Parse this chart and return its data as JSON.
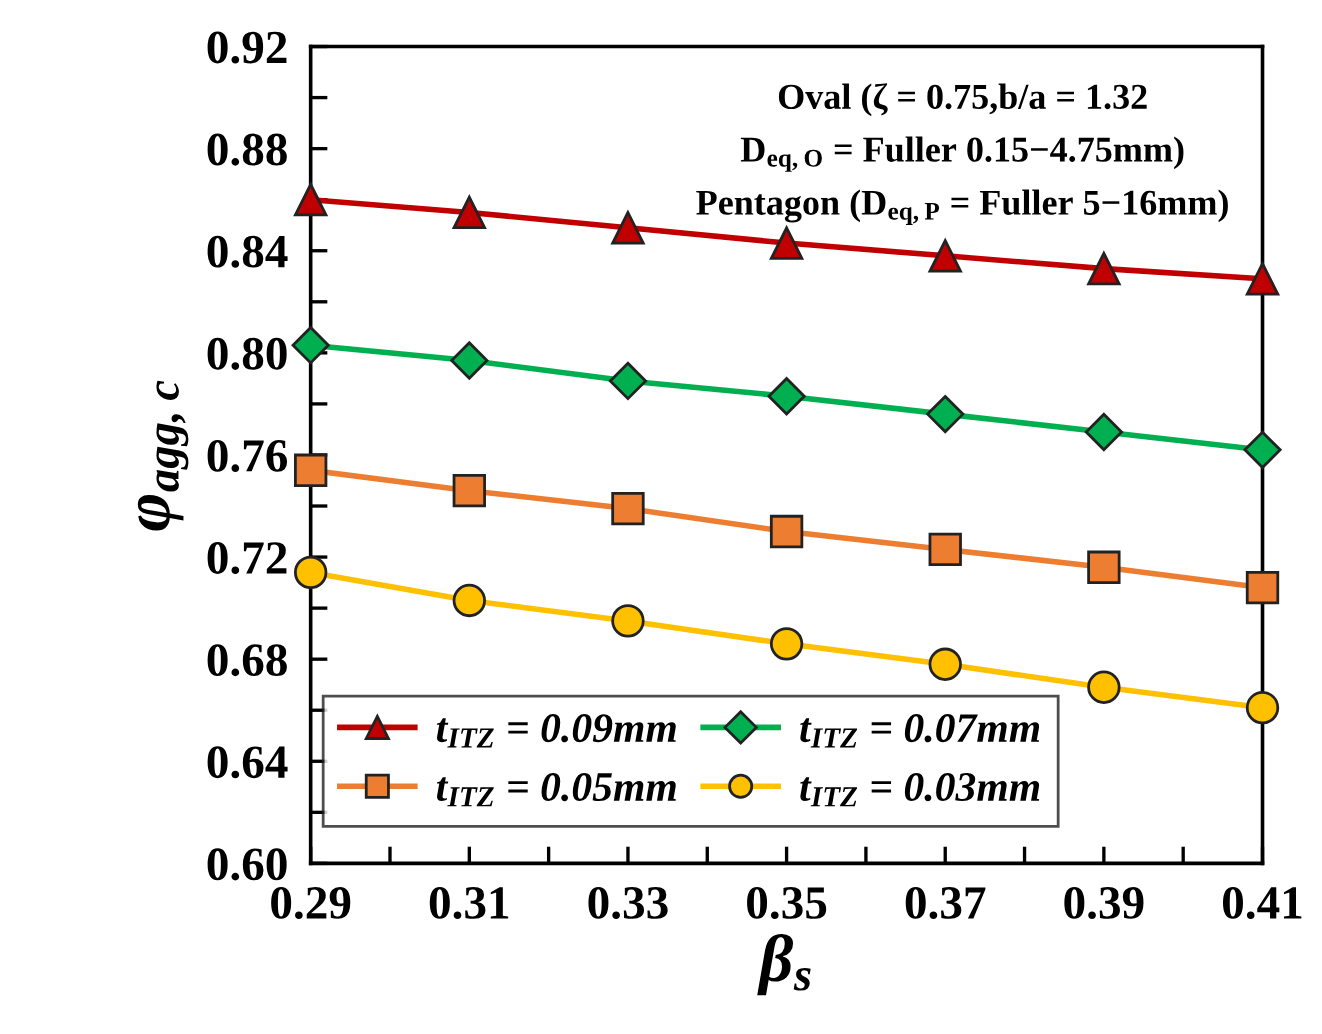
{
  "chart_data": {
    "type": "line",
    "xlabel": "β$_{s}$",
    "ylabel": "φ$_{agg,c}$",
    "x": [
      0.29,
      0.31,
      0.33,
      0.35,
      0.37,
      0.39,
      0.41
    ],
    "series": [
      {
        "name": "t$_{ITZ}$ = 0.09mm",
        "color": "#c00000",
        "marker": "triangle",
        "values": [
          0.86,
          0.855,
          0.849,
          0.843,
          0.838,
          0.833,
          0.829
        ]
      },
      {
        "name": "t$_{ITZ}$ = 0.07mm",
        "color": "#00b050",
        "marker": "diamond",
        "values": [
          0.803,
          0.797,
          0.789,
          0.783,
          0.776,
          0.769,
          0.762
        ]
      },
      {
        "name": "t$_{ITZ}$ = 0.05mm",
        "color": "#ed7d31",
        "marker": "square",
        "values": [
          0.754,
          0.746,
          0.739,
          0.73,
          0.723,
          0.716,
          0.708
        ]
      },
      {
        "name": "t$_{ITZ}$ = 0.03mm",
        "color": "#ffc000",
        "marker": "circle",
        "values": [
          0.714,
          0.703,
          0.695,
          0.686,
          0.678,
          0.669,
          0.661
        ]
      }
    ],
    "xlim": [
      0.29,
      0.41
    ],
    "xticks": [
      0.29,
      {
        "value": 0.3,
        "label": null
      },
      0.31,
      {
        "value": 0.32,
        "label": null
      },
      0.33,
      {
        "value": 0.34,
        "label": null
      },
      0.35,
      {
        "value": 0.36,
        "label": null
      },
      0.37,
      {
        "value": 0.38,
        "label": null
      },
      0.39,
      {
        "value": 0.4,
        "label": null
      },
      0.41
    ],
    "ylim": [
      0.6,
      0.92
    ],
    "yticks": [
      {
        "value": 0.6,
        "label": "0.60"
      },
      {
        "value": 0.62,
        "label": null
      },
      0.64,
      {
        "value": 0.66,
        "label": null
      },
      0.68,
      {
        "value": 0.7,
        "label": null
      },
      0.72,
      {
        "value": 0.74,
        "label": null
      },
      0.76,
      {
        "value": 0.78,
        "label": null
      },
      {
        "value": 0.8,
        "label": "0.80"
      },
      {
        "value": 0.82,
        "label": null
      },
      0.84,
      {
        "value": 0.86,
        "label": null
      },
      0.88,
      {
        "value": 0.9,
        "label": null
      },
      0.92
    ],
    "annotations": [
      "Oval (ζ = 0.75,b/a = 1.32",
      "D$_{eq,O}$ = Fuller 0.15−4.75mm)",
      "Pentagon (D$_{eq,P}$ = Fuller 5−16mm)"
    ],
    "legend": "bottom left",
    "grid": false,
    "line_style": "solid"
  }
}
